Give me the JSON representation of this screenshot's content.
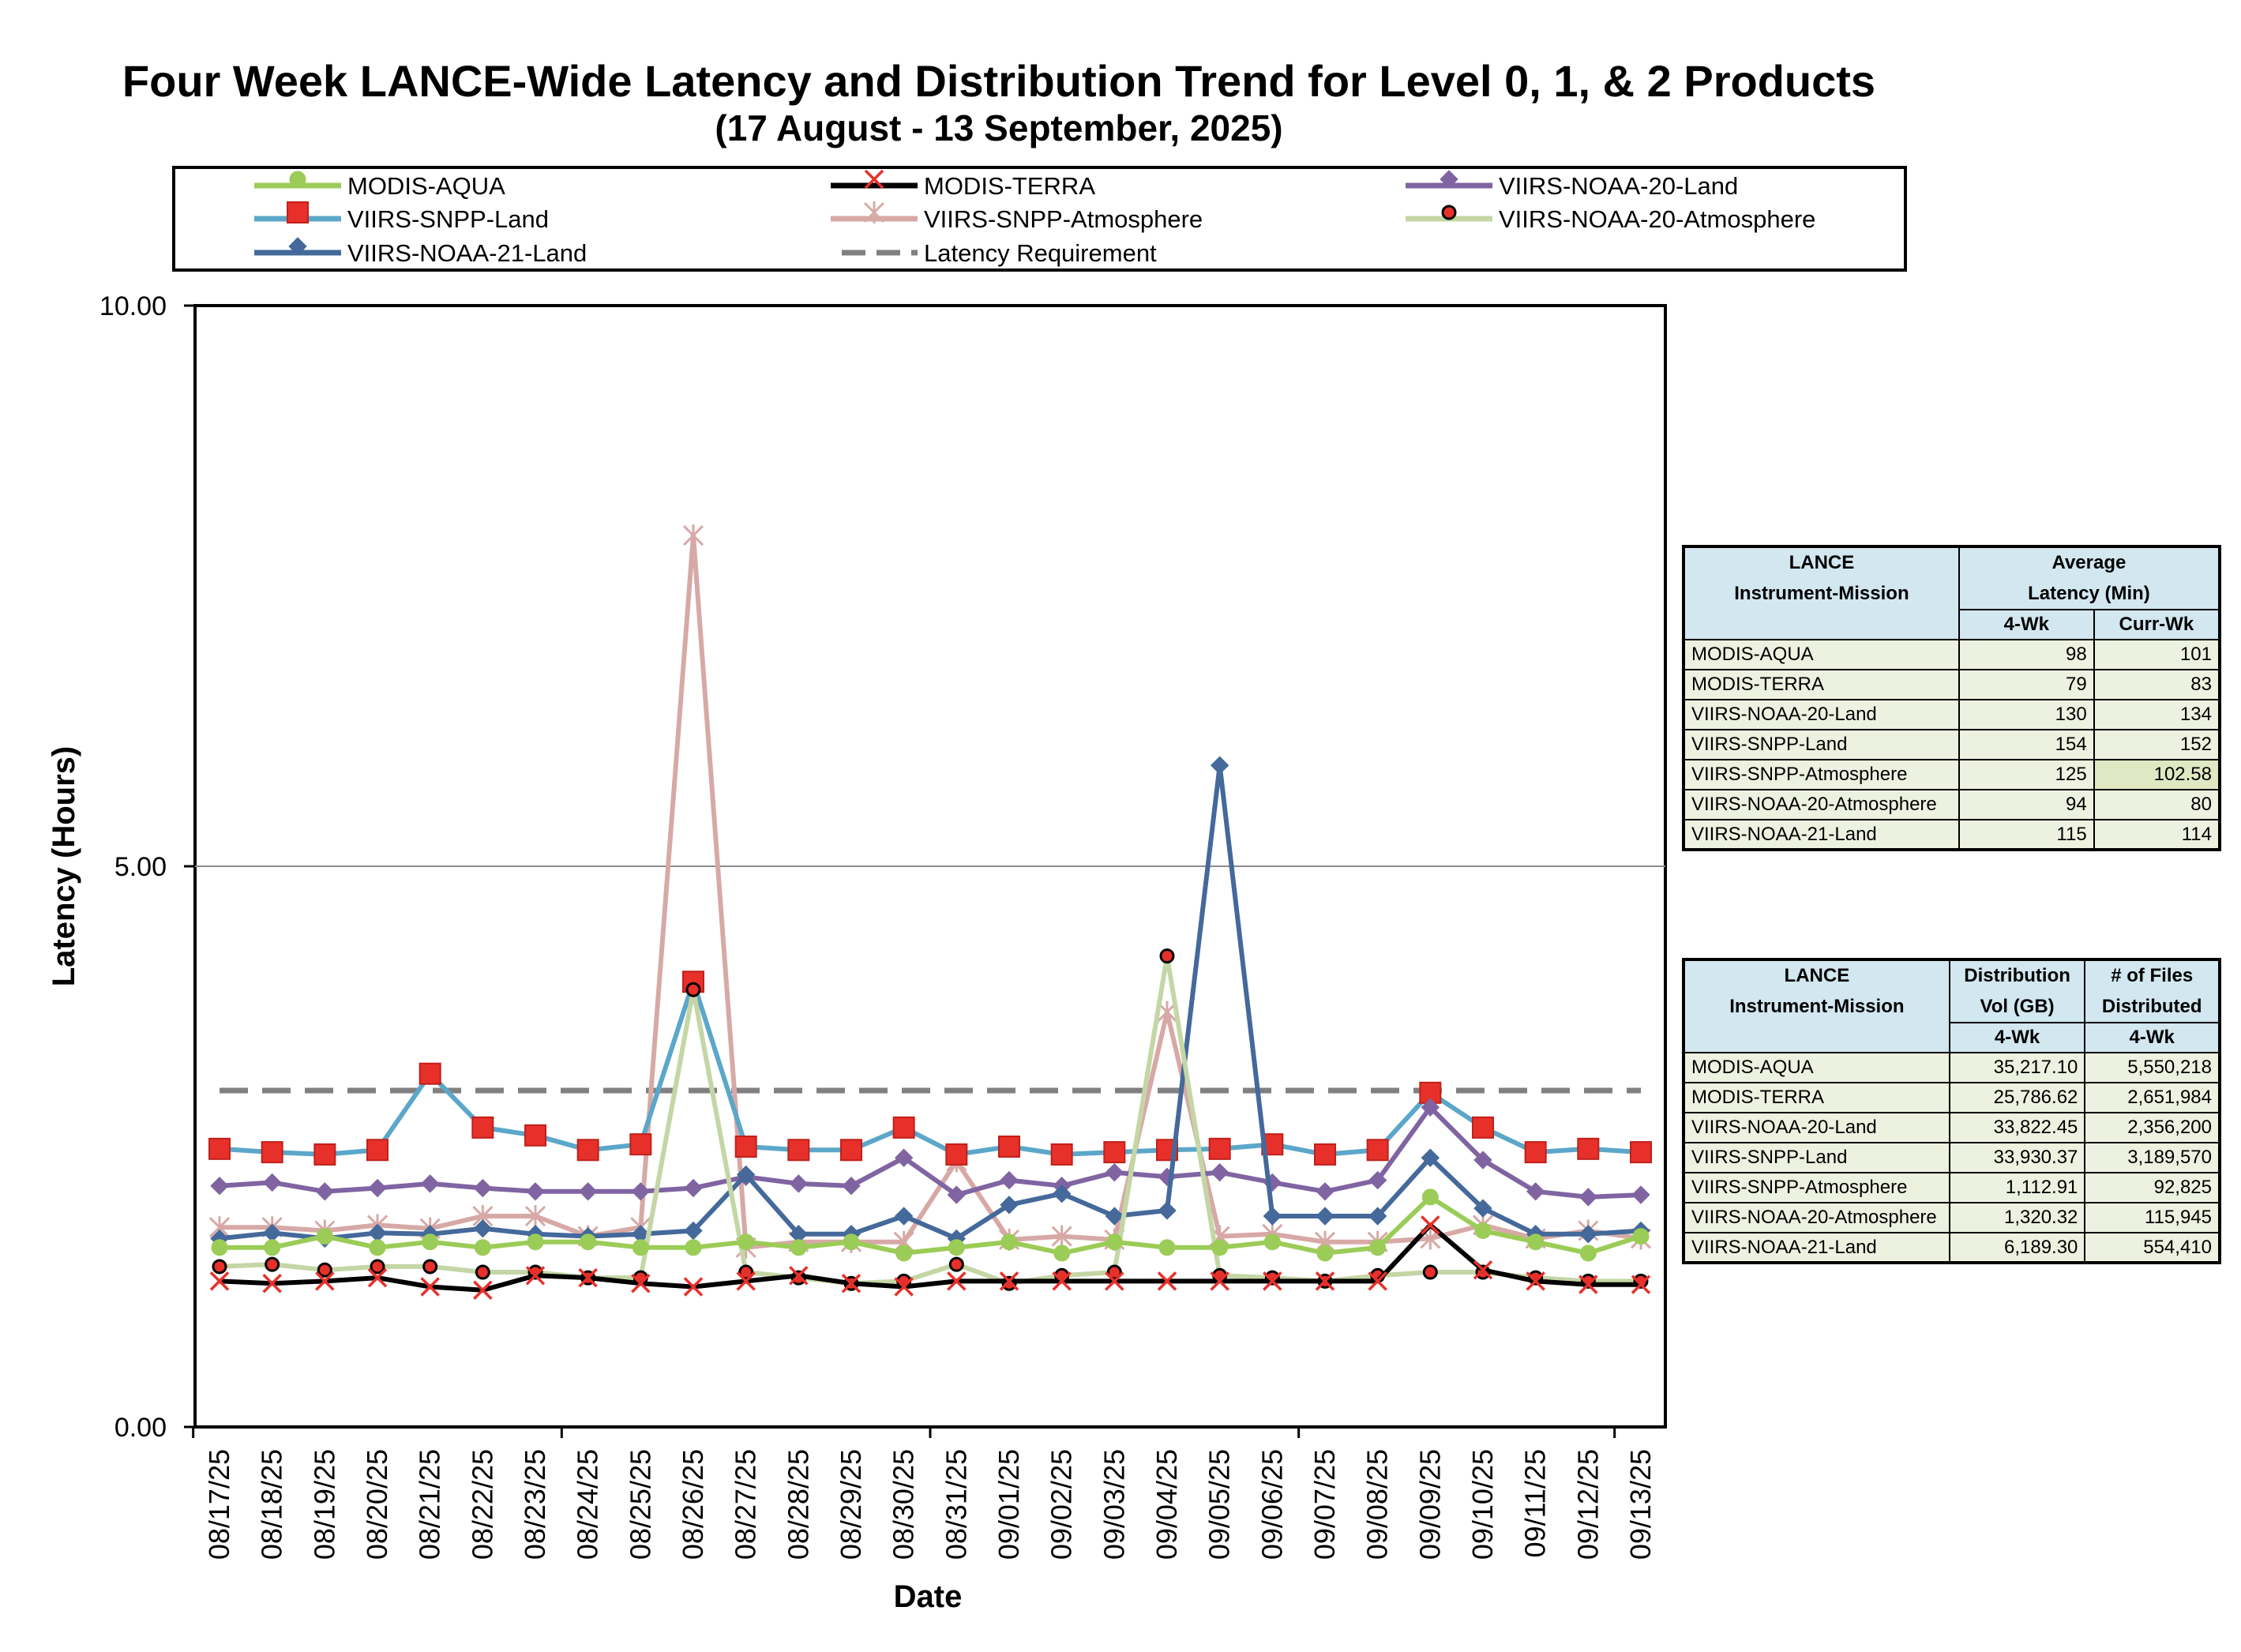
{
  "chart_data": {
    "type": "line",
    "title": "Four Week LANCE-Wide Latency and Distribution Trend for Level 0, 1, & 2 Products",
    "subtitle": "(17  August    -  13  September,  2025)",
    "xlabel": "Date",
    "ylabel": "Latency (Hours)",
    "ylim": [
      0,
      10
    ],
    "yticks": [
      "0.00",
      "5.00",
      "10.00"
    ],
    "grid": "horizontal at 5.00",
    "legend_position": "top",
    "categories": [
      "08/17/25",
      "08/18/25",
      "08/19/25",
      "08/20/25",
      "08/21/25",
      "08/22/25",
      "08/23/25",
      "08/24/25",
      "08/25/25",
      "08/26/25",
      "08/27/25",
      "08/28/25",
      "08/29/25",
      "08/30/25",
      "08/31/25",
      "09/01/25",
      "09/02/25",
      "09/03/25",
      "09/04/25",
      "09/05/25",
      "09/06/25",
      "09/07/25",
      "09/08/25",
      "09/09/25",
      "09/10/25",
      "09/11/25",
      "09/12/25",
      "09/13/25"
    ],
    "series": [
      {
        "name": "MODIS-AQUA",
        "color": "#9bcc57",
        "marker": "circle",
        "values": [
          1.6,
          1.6,
          1.7,
          1.6,
          1.65,
          1.6,
          1.65,
          1.65,
          1.6,
          1.6,
          1.65,
          1.6,
          1.65,
          1.55,
          1.6,
          1.65,
          1.55,
          1.65,
          1.6,
          1.6,
          1.65,
          1.55,
          1.6,
          2.05,
          1.75,
          1.65,
          1.55,
          1.7
        ]
      },
      {
        "name": "MODIS-TERRA",
        "color": "#000000",
        "marker": "x-red",
        "values": [
          1.3,
          1.28,
          1.3,
          1.33,
          1.25,
          1.22,
          1.35,
          1.33,
          1.28,
          1.25,
          1.3,
          1.35,
          1.28,
          1.25,
          1.3,
          1.3,
          1.3,
          1.3,
          1.3,
          1.3,
          1.3,
          1.3,
          1.3,
          1.8,
          1.4,
          1.3,
          1.27,
          1.27
        ]
      },
      {
        "name": "VIIRS-NOAA-20-Land",
        "color": "#8064a2",
        "marker": "diamond",
        "values": [
          2.15,
          2.18,
          2.1,
          2.13,
          2.17,
          2.13,
          2.1,
          2.1,
          2.1,
          2.13,
          2.23,
          2.17,
          2.15,
          2.4,
          2.07,
          2.2,
          2.15,
          2.27,
          2.23,
          2.27,
          2.18,
          2.1,
          2.2,
          2.85,
          2.38,
          2.1,
          2.05,
          2.07
        ]
      },
      {
        "name": "VIIRS-SNPP-Land",
        "color": "#5ba7c9",
        "marker": "square-red",
        "values": [
          2.48,
          2.45,
          2.43,
          2.47,
          3.15,
          2.67,
          2.6,
          2.47,
          2.52,
          3.97,
          2.5,
          2.47,
          2.47,
          2.67,
          2.43,
          2.5,
          2.43,
          2.45,
          2.47,
          2.48,
          2.52,
          2.43,
          2.47,
          2.98,
          2.67,
          2.45,
          2.48,
          2.45
        ]
      },
      {
        "name": "VIIRS-SNPP-Atmosphere",
        "color": "#d7a9a6",
        "marker": "asterisk",
        "values": [
          1.78,
          1.78,
          1.75,
          1.8,
          1.77,
          1.88,
          1.88,
          1.7,
          1.78,
          7.95,
          1.6,
          1.65,
          1.65,
          1.65,
          2.37,
          1.67,
          1.7,
          1.67,
          3.7,
          1.7,
          1.72,
          1.65,
          1.65,
          1.68,
          1.8,
          1.68,
          1.75,
          1.68
        ]
      },
      {
        "name": "VIIRS-NOAA-20-Atmosphere",
        "color": "#c4d6a5",
        "marker": "dot-red",
        "values": [
          1.43,
          1.45,
          1.4,
          1.43,
          1.43,
          1.38,
          1.38,
          1.33,
          1.33,
          3.9,
          1.38,
          1.33,
          1.28,
          1.3,
          1.45,
          1.28,
          1.35,
          1.38,
          4.2,
          1.35,
          1.33,
          1.3,
          1.35,
          1.38,
          1.38,
          1.33,
          1.3,
          1.3
        ]
      },
      {
        "name": "VIIRS-NOAA-21-Land",
        "color": "#44699a",
        "marker": "diamond",
        "values": [
          1.68,
          1.73,
          1.68,
          1.73,
          1.72,
          1.77,
          1.72,
          1.7,
          1.72,
          1.75,
          2.25,
          1.72,
          1.72,
          1.88,
          1.68,
          1.98,
          2.08,
          1.88,
          1.93,
          5.9,
          1.88,
          1.88,
          1.88,
          2.4,
          1.95,
          1.72,
          1.72,
          1.75
        ]
      },
      {
        "name": "Latency Requirement",
        "color": "#808080",
        "marker": "none",
        "dashed": true,
        "values": [
          3,
          3,
          3,
          3,
          3,
          3,
          3,
          3,
          3,
          3,
          3,
          3,
          3,
          3,
          3,
          3,
          3,
          3,
          3,
          3,
          3,
          3,
          3,
          3,
          3,
          3,
          3,
          3
        ]
      }
    ]
  },
  "latency_table": {
    "header1": "LANCE",
    "header2": "Instrument-Mission",
    "avg_header1": "Average",
    "avg_header2": "Latency (Min)",
    "col_4wk": "4-Wk",
    "col_curr": "Curr-Wk",
    "rows": [
      {
        "name": "MODIS-AQUA",
        "four_wk": "98",
        "curr_wk": "101"
      },
      {
        "name": "MODIS-TERRA",
        "four_wk": "79",
        "curr_wk": "83"
      },
      {
        "name": "VIIRS-NOAA-20-Land",
        "four_wk": "130",
        "curr_wk": "134"
      },
      {
        "name": "VIIRS-SNPP-Land",
        "four_wk": "154",
        "curr_wk": "152"
      },
      {
        "name": "VIIRS-SNPP-Atmosphere",
        "four_wk": "125",
        "curr_wk": "102.58"
      },
      {
        "name": "VIIRS-NOAA-20-Atmosphere",
        "four_wk": "94",
        "curr_wk": "80"
      },
      {
        "name": "VIIRS-NOAA-21-Land",
        "four_wk": "115",
        "curr_wk": "114"
      }
    ]
  },
  "distribution_table": {
    "header1": "LANCE",
    "header2": "Instrument-Mission",
    "vol_header1": "Distribution",
    "vol_header2": "Vol (GB)",
    "files_header1": "# of Files",
    "files_header2": "Distributed",
    "col_4wk": "4-Wk",
    "col_4wk_b": "4-Wk",
    "rows": [
      {
        "name": "MODIS-AQUA",
        "vol": "35,217.10",
        "files": "5,550,218"
      },
      {
        "name": "MODIS-TERRA",
        "vol": "25,786.62",
        "files": "2,651,984"
      },
      {
        "name": "VIIRS-NOAA-20-Land",
        "vol": "33,822.45",
        "files": "2,356,200"
      },
      {
        "name": "VIIRS-SNPP-Land",
        "vol": "33,930.37",
        "files": "3,189,570"
      },
      {
        "name": "VIIRS-SNPP-Atmosphere",
        "vol": "1,112.91",
        "files": "92,825"
      },
      {
        "name": "VIIRS-NOAA-20-Atmosphere",
        "vol": "1,320.32",
        "files": "115,945"
      },
      {
        "name": "VIIRS-NOAA-21-Land",
        "vol": "6,189.30",
        "files": "554,410"
      }
    ]
  }
}
